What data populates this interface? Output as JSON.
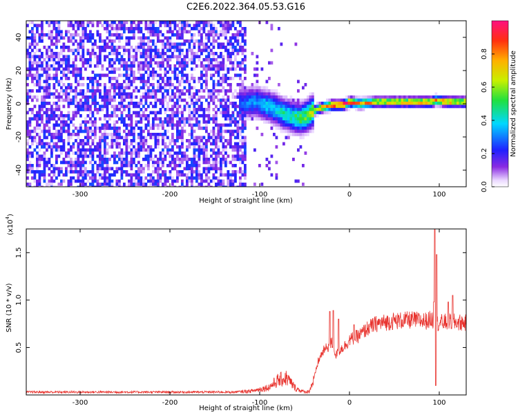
{
  "figure": {
    "title": "C2E6.2022.364.05.53.G16"
  },
  "colors": {
    "snr_line": "#e8322d",
    "background": "#ffffff",
    "axis": "#000000"
  },
  "chart_data": [
    {
      "type": "heatmap",
      "xlabel": "Height of straight line (km)",
      "ylabel": "Frequency (Hz)",
      "xlim": [
        -360,
        130
      ],
      "ylim": [
        -50,
        50
      ],
      "xticks": [
        -300,
        -200,
        -100,
        0,
        100
      ],
      "yticks": [
        -40,
        -20,
        0,
        20,
        40
      ],
      "xtick_labels": [
        "-300",
        "-200",
        "-100",
        "0",
        "100"
      ],
      "ytick_labels": [
        "-40",
        "-20",
        "0",
        "20",
        "40"
      ],
      "colorbar": {
        "label": "Normalized spectral amplitude",
        "range": [
          0,
          1
        ],
        "ticks": [
          0.0,
          0.2,
          0.4,
          0.6,
          0.8
        ],
        "tick_labels": [
          "0.0",
          "0.2",
          "0.4",
          "0.6",
          "0.8"
        ],
        "colormap": "rainbow (white/purple low, blue, cyan, green, yellow, orange, red high)"
      },
      "ridge": {
        "description": "Dominant spectral peak frequency vs height",
        "points": [
          {
            "x": -120,
            "y": 1
          },
          {
            "x": -105,
            "y": 2
          },
          {
            "x": -95,
            "y": 0
          },
          {
            "x": -85,
            "y": -2
          },
          {
            "x": -75,
            "y": -5
          },
          {
            "x": -65,
            "y": -7
          },
          {
            "x": -55,
            "y": -8
          },
          {
            "x": -48,
            "y": -6
          },
          {
            "x": -40,
            "y": -3
          },
          {
            "x": -30,
            "y": -1
          },
          {
            "x": -20,
            "y": 0
          },
          {
            "x": -10,
            "y": 0
          },
          {
            "x": 0,
            "y": 2
          },
          {
            "x": 10,
            "y": 1
          },
          {
            "x": 30,
            "y": 2
          },
          {
            "x": 60,
            "y": 2
          },
          {
            "x": 90,
            "y": 2
          },
          {
            "x": 95,
            "y": 3
          },
          {
            "x": 110,
            "y": 2
          },
          {
            "x": 130,
            "y": 2
          }
        ],
        "amplitude": [
          {
            "x": -120,
            "v": 0.28
          },
          {
            "x": -95,
            "v": 0.38
          },
          {
            "x": -70,
            "v": 0.45
          },
          {
            "x": -50,
            "v": 0.55
          },
          {
            "x": -35,
            "v": 0.7
          },
          {
            "x": -20,
            "v": 0.92
          },
          {
            "x": 0,
            "v": 0.95
          },
          {
            "x": 20,
            "v": 0.75
          },
          {
            "x": 40,
            "v": 0.72
          },
          {
            "x": 80,
            "v": 0.78
          },
          {
            "x": 100,
            "v": 0.8
          },
          {
            "x": 130,
            "v": 0.75
          }
        ]
      },
      "noise_region": {
        "x_from": -360,
        "x_to": -115,
        "amplitude": 0.25
      },
      "grid": false
    },
    {
      "type": "line",
      "xlabel": "Height of straight line (km)",
      "ylabel": "SNR (10 * v/v)",
      "y_multiplier_label": "(x10",
      "y_multiplier_exp": "4",
      "y_multiplier_close": ")",
      "xlim": [
        -360,
        130
      ],
      "ylim": [
        0,
        17500
      ],
      "xticks": [
        -300,
        -200,
        -100,
        0,
        100
      ],
      "yticks": [
        5000,
        10000,
        15000
      ],
      "xtick_labels": [
        "-300",
        "-200",
        "-100",
        "0",
        "100"
      ],
      "ytick_labels": [
        "0.5",
        "1.0",
        "1.5"
      ],
      "series": [
        {
          "color": "#e8322d",
          "envelope": [
            {
              "x": -360,
              "y": 300
            },
            {
              "x": -200,
              "y": 300
            },
            {
              "x": -130,
              "y": 300
            },
            {
              "x": -110,
              "y": 400
            },
            {
              "x": -90,
              "y": 800
            },
            {
              "x": -80,
              "y": 1500
            },
            {
              "x": -70,
              "y": 1800
            },
            {
              "x": -60,
              "y": 700
            },
            {
              "x": -50,
              "y": 300
            },
            {
              "x": -45,
              "y": 400
            },
            {
              "x": -40,
              "y": 1500
            },
            {
              "x": -35,
              "y": 3500
            },
            {
              "x": -30,
              "y": 4500
            },
            {
              "x": -25,
              "y": 5000
            },
            {
              "x": -20,
              "y": 5500
            },
            {
              "x": -15,
              "y": 4200
            },
            {
              "x": -10,
              "y": 4800
            },
            {
              "x": -5,
              "y": 5200
            },
            {
              "x": 0,
              "y": 5800
            },
            {
              "x": 10,
              "y": 6200
            },
            {
              "x": 20,
              "y": 7000
            },
            {
              "x": 30,
              "y": 7500
            },
            {
              "x": 50,
              "y": 7800
            },
            {
              "x": 70,
              "y": 7900
            },
            {
              "x": 85,
              "y": 7800
            },
            {
              "x": 92,
              "y": 8000
            },
            {
              "x": 96,
              "y": 7500
            },
            {
              "x": 100,
              "y": 7600
            },
            {
              "x": 110,
              "y": 7700
            },
            {
              "x": 130,
              "y": 7600
            }
          ],
          "spikes": [
            {
              "x": -22,
              "y": 8800
            },
            {
              "x": -18,
              "y": 8900
            },
            {
              "x": -12,
              "y": 8000
            },
            {
              "x": 5,
              "y": 7400
            },
            {
              "x": 94,
              "y": 9800
            },
            {
              "x": 95,
              "y": 17500
            },
            {
              "x": 97,
              "y": 14800
            },
            {
              "x": 96,
              "y": 1000
            },
            {
              "x": 115,
              "y": 10500
            },
            {
              "x": 110,
              "y": 9800
            }
          ]
        }
      ],
      "grid": false
    }
  ]
}
